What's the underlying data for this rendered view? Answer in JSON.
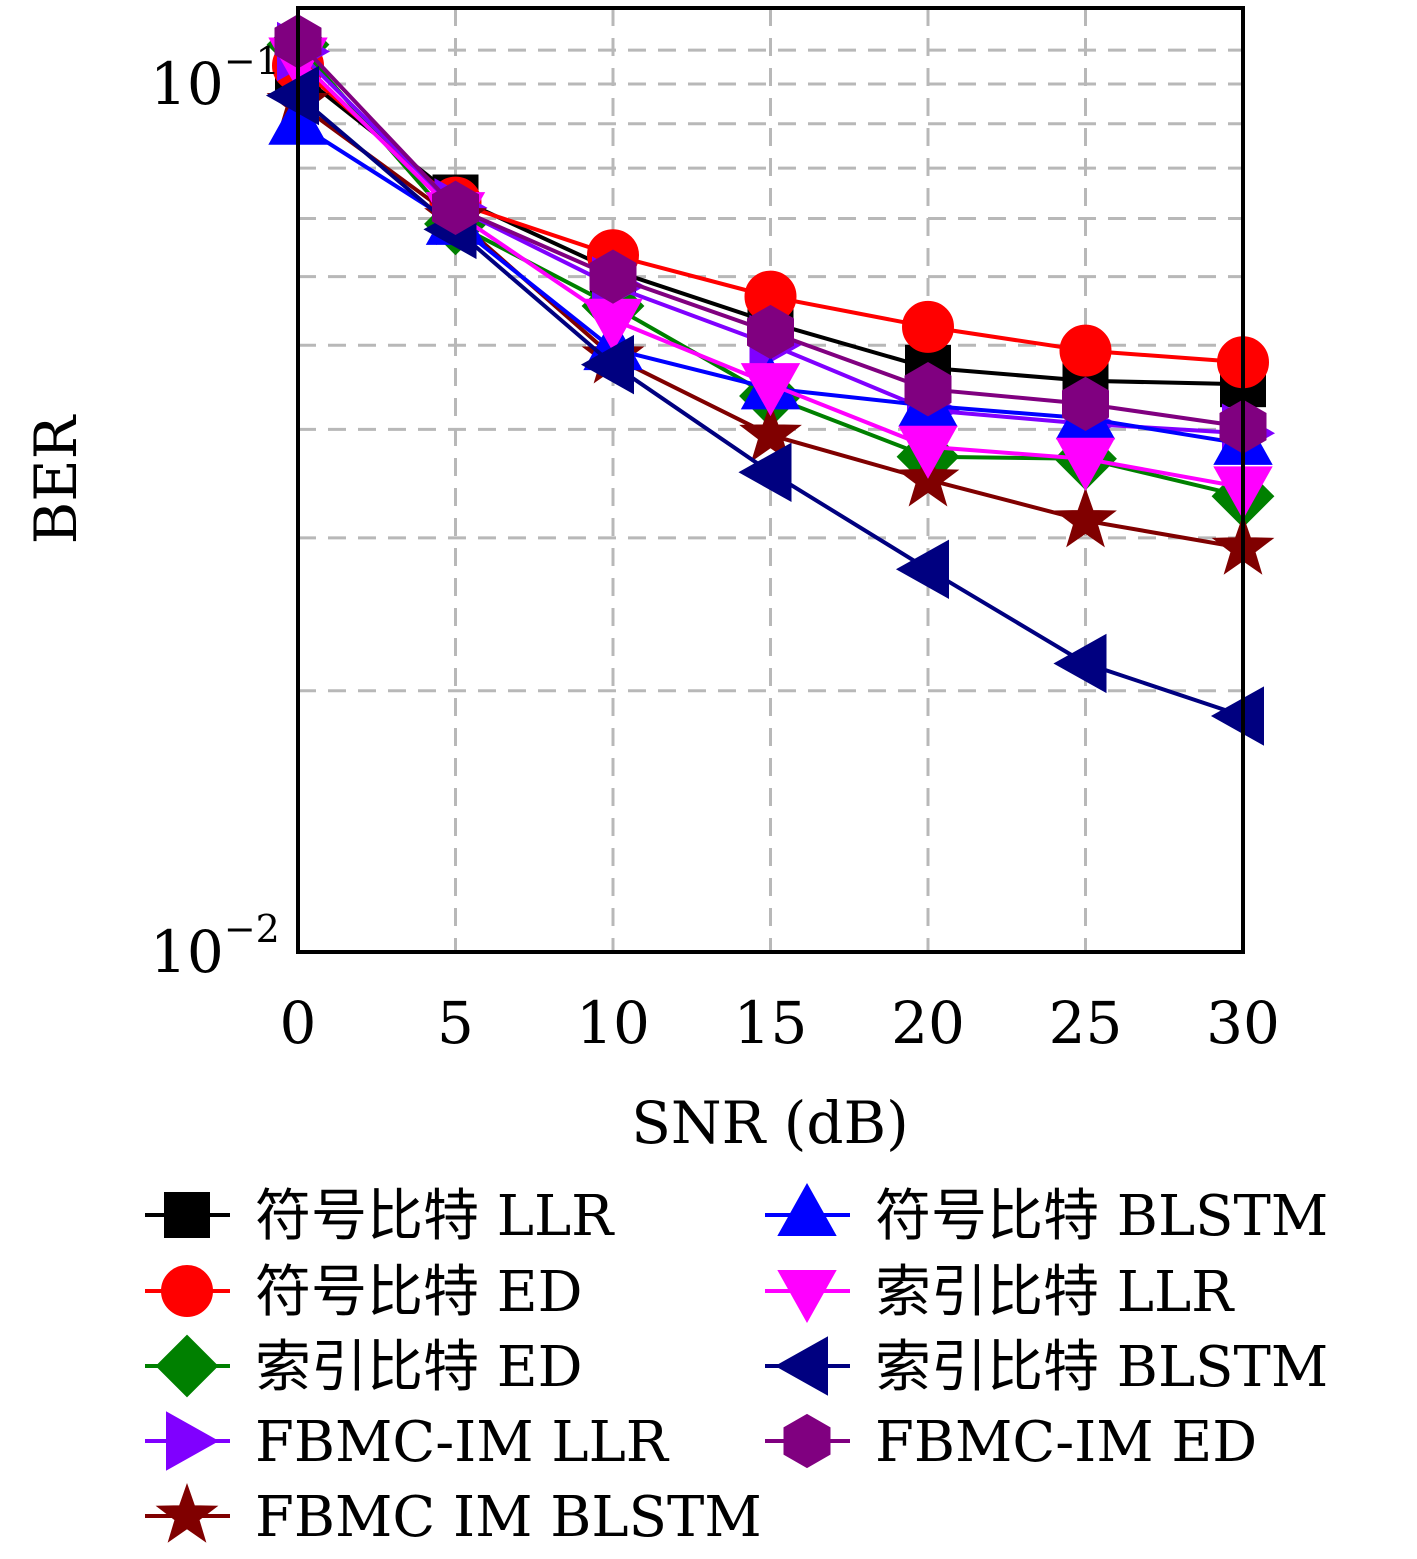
{
  "chart_data": {
    "type": "line",
    "title": "",
    "xlabel": "SNR (dB)",
    "ylabel": "BER",
    "x_scale": "linear",
    "y_scale": "log",
    "xlim": [
      0,
      30
    ],
    "ylim": [
      0.01,
      0.11
    ],
    "grid": true,
    "legend_position": "bottom",
    "x": [
      0,
      5,
      10,
      15,
      20,
      25,
      30
    ],
    "x_ticks": [
      "0",
      "5",
      "10",
      "15",
      "20",
      "25",
      "30"
    ],
    "y_ticks": [
      {
        "base": "10",
        "exp": "−1",
        "value": 0.1
      },
      {
        "base": "10",
        "exp": "−2",
        "value": 0.01
      }
    ],
    "series": [
      {
        "name": "符号比特 LLR",
        "color": "#000000",
        "marker": "square",
        "values": [
          0.103,
          0.074,
          0.061,
          0.0531,
          0.0471,
          0.0455,
          0.0451
        ]
      },
      {
        "name": "符号比特 ED",
        "color": "#ff0000",
        "marker": "circle",
        "values": [
          0.105,
          0.073,
          0.0635,
          0.0569,
          0.0525,
          0.0493,
          0.0478
        ]
      },
      {
        "name": "索引比特 ED",
        "color": "#008000",
        "marker": "diamond",
        "values": [
          0.111,
          0.069,
          0.0555,
          0.0437,
          0.0372,
          0.037,
          0.0335
        ]
      },
      {
        "name": "FBMC-IM LLR",
        "color": "#8000ff",
        "marker": "triangle-right",
        "values": [
          0.109,
          0.072,
          0.0585,
          0.0501,
          0.0421,
          0.0406,
          0.0396
        ]
      },
      {
        "name": "FBMC IM BLSTM",
        "color": "#800000",
        "marker": "star",
        "values": [
          0.095,
          0.07,
          0.0485,
          0.0394,
          0.035,
          0.0314,
          0.0292
        ]
      },
      {
        "name": "符号比特 BLSTM",
        "color": "#0000ff",
        "marker": "triangle-up",
        "values": [
          0.09,
          0.069,
          0.0495,
          0.0446,
          0.0426,
          0.0412,
          0.0385
        ]
      },
      {
        "name": "索引比特 LLR",
        "color": "#ff00ff",
        "marker": "triangle-down",
        "values": [
          0.107,
          0.071,
          0.0535,
          0.0451,
          0.0382,
          0.037,
          0.0343
        ]
      },
      {
        "name": "索引比特 BLSTM",
        "color": "#000080",
        "marker": "triangle-left",
        "values": [
          0.097,
          0.068,
          0.0475,
          0.0357,
          0.0276,
          0.0215,
          0.0187
        ]
      },
      {
        "name": "FBMC-IM ED",
        "color": "#800080",
        "marker": "hexagon",
        "values": [
          0.112,
          0.072,
          0.06,
          0.0518,
          0.0445,
          0.0428,
          0.0403
        ]
      }
    ]
  }
}
